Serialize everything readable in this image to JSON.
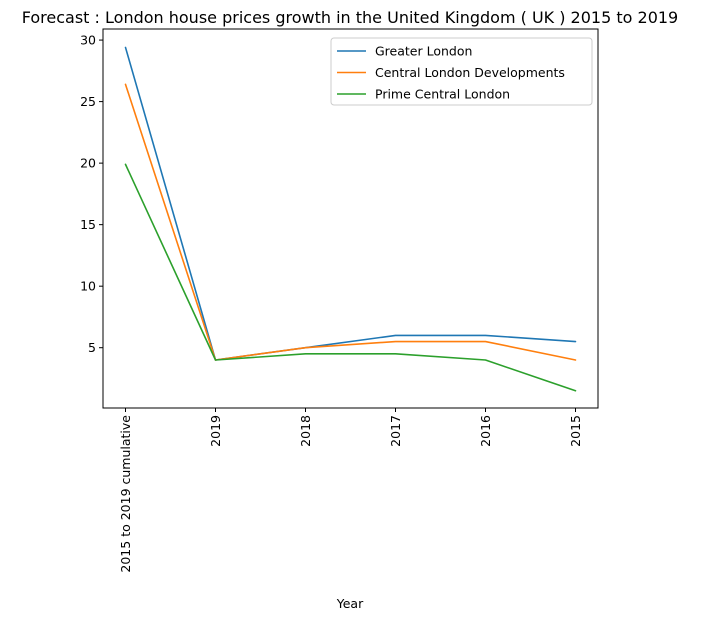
{
  "chart_data": {
    "type": "line",
    "title": "Forecast : London house prices growth in the United Kingdom ( UK ) 2015 to 2019",
    "xlabel": "Year",
    "ylabel": "",
    "categories": [
      "2015 to 2019 cumulative",
      "2019",
      "2018",
      "2017",
      "2016",
      "2015"
    ],
    "yticks": [
      5,
      10,
      15,
      20,
      25,
      30
    ],
    "ylim": [
      0.1,
      30.9
    ],
    "series": [
      {
        "name": "Greater London",
        "color": "#1f77b4",
        "values": [
          29.4,
          4.0,
          5.0,
          6.0,
          6.0,
          5.5
        ]
      },
      {
        "name": "Central London Developments",
        "color": "#ff7f0e",
        "values": [
          26.4,
          4.0,
          5.0,
          5.5,
          5.5,
          4.0
        ]
      },
      {
        "name": "Prime Central London",
        "color": "#2ca02c",
        "values": [
          19.9,
          4.0,
          4.5,
          4.5,
          4.0,
          1.5
        ]
      }
    ],
    "legend_position": "top-right",
    "grid": false
  }
}
